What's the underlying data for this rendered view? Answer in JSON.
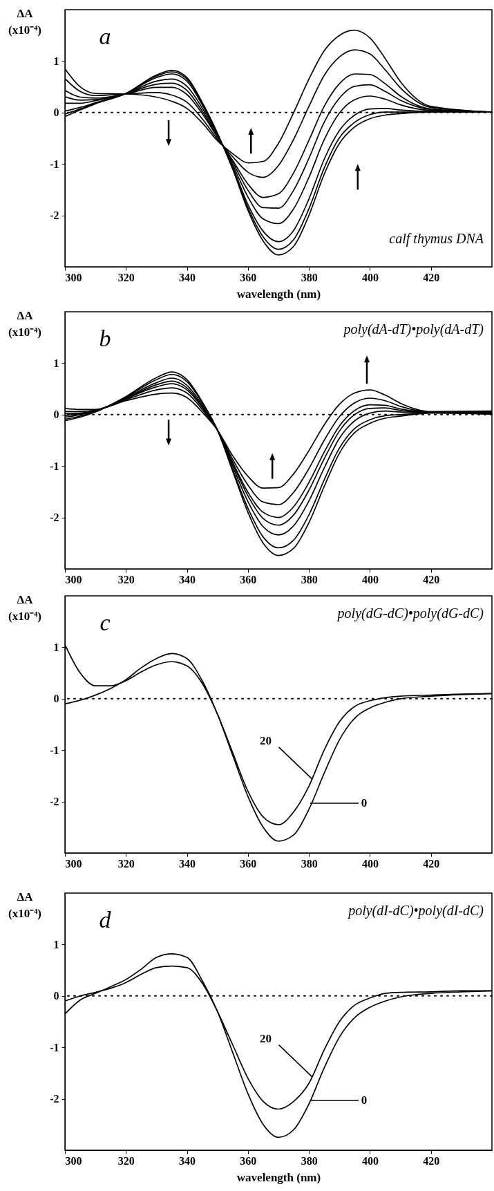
{
  "chart_data": [
    {
      "type": "line",
      "title": "a",
      "subtitle": "calf thymus DNA",
      "xlabel": "wavelength (nm)",
      "ylabel": "ΔA (x10⁻⁴)",
      "x": [
        300,
        305,
        310,
        320,
        330,
        335,
        340,
        345,
        350,
        355,
        360,
        365,
        370,
        375,
        380,
        385,
        390,
        395,
        400,
        405,
        410,
        420,
        440
      ],
      "xlim": [
        300,
        440
      ],
      "xticks": [
        300,
        320,
        340,
        360,
        380,
        400,
        420
      ],
      "ylim": [
        -3,
        2
      ],
      "yticks": [
        -2,
        -1,
        0,
        1
      ],
      "ref_lines": [
        {
          "axis": "y",
          "value": 0,
          "line_style": "dotted"
        }
      ],
      "series": [
        {
          "color": "#000000",
          "values": [
            -0.08,
            0.05,
            0.17,
            0.37,
            0.73,
            0.82,
            0.68,
            0.2,
            -0.4,
            -1.1,
            -1.9,
            -2.5,
            -2.77,
            -2.6,
            -2.0,
            -1.2,
            -0.6,
            -0.28,
            -0.12,
            -0.05,
            -0.02,
            0.01,
            0.01
          ]
        },
        {
          "color": "#000000",
          "values": [
            -0.03,
            0.07,
            0.18,
            0.37,
            0.71,
            0.79,
            0.65,
            0.18,
            -0.41,
            -1.08,
            -1.85,
            -2.42,
            -2.66,
            -2.47,
            -1.87,
            -1.08,
            -0.49,
            -0.19,
            -0.04,
            0.01,
            0.01,
            0.01,
            0.01
          ]
        },
        {
          "color": "#000000",
          "values": [
            0.03,
            0.1,
            0.19,
            0.37,
            0.68,
            0.75,
            0.61,
            0.15,
            -0.42,
            -1.06,
            -1.79,
            -2.31,
            -2.51,
            -2.29,
            -1.68,
            -0.91,
            -0.35,
            -0.05,
            0.07,
            0.08,
            0.05,
            0.02,
            0.01
          ]
        },
        {
          "color": "#000000",
          "values": [
            0.18,
            0.18,
            0.23,
            0.37,
            0.61,
            0.65,
            0.51,
            0.09,
            -0.44,
            -1.02,
            -1.64,
            -2.07,
            -2.16,
            -1.87,
            -1.26,
            -0.53,
            -0.01,
            0.25,
            0.32,
            0.26,
            0.15,
            0.04,
            0.01
          ]
        },
        {
          "color": "#000000",
          "values": [
            0.31,
            0.24,
            0.25,
            0.37,
            0.55,
            0.57,
            0.43,
            0.03,
            -0.46,
            -0.97,
            -1.51,
            -1.85,
            -1.86,
            -1.51,
            -0.89,
            -0.19,
            0.28,
            0.51,
            0.54,
            0.41,
            0.24,
            0.06,
            0.01
          ]
        },
        {
          "color": "#000000",
          "values": [
            0.43,
            0.3,
            0.28,
            0.36,
            0.49,
            0.49,
            0.35,
            -0.02,
            -0.48,
            -0.93,
            -1.39,
            -1.65,
            -1.58,
            -1.17,
            -0.54,
            0.12,
            0.56,
            0.75,
            0.74,
            0.56,
            0.32,
            0.07,
            0.01
          ]
        },
        {
          "color": "#000000",
          "values": [
            0.66,
            0.41,
            0.33,
            0.36,
            0.39,
            0.34,
            0.2,
            -0.12,
            -0.52,
            -0.86,
            -1.16,
            -1.26,
            -1.03,
            -0.52,
            0.12,
            0.72,
            1.08,
            1.22,
            1.14,
            0.83,
            0.48,
            0.1,
            0.01
          ]
        },
        {
          "color": "#000000",
          "values": [
            0.85,
            0.5,
            0.37,
            0.36,
            0.3,
            0.22,
            0.08,
            -0.2,
            -0.55,
            -0.8,
            -0.98,
            -0.95,
            -0.6,
            0.0,
            0.65,
            1.2,
            1.5,
            1.6,
            1.45,
            1.05,
            0.6,
            0.12,
            0.01
          ]
        }
      ]
    },
    {
      "type": "line",
      "title": "b",
      "subtitle": "poly(dA-dT)•poly(dA-dT)",
      "ylabel": "ΔA (x10⁻⁴)",
      "x": [
        300,
        305,
        310,
        320,
        330,
        335,
        340,
        345,
        350,
        355,
        360,
        365,
        370,
        375,
        380,
        385,
        390,
        395,
        400,
        405,
        410,
        420,
        440
      ],
      "xlim": [
        300,
        440
      ],
      "xticks": [
        300,
        320,
        340,
        360,
        380,
        400,
        420
      ],
      "ylim": [
        -3,
        2
      ],
      "yticks": [
        -2,
        -1,
        0,
        1
      ],
      "ref_lines": [
        {
          "axis": "y",
          "value": 0,
          "line_style": "dotted"
        }
      ],
      "series": [
        {
          "color": "#000000",
          "values": [
            -0.12,
            -0.05,
            0.05,
            0.35,
            0.72,
            0.83,
            0.68,
            0.25,
            -0.3,
            -1.1,
            -1.9,
            -2.5,
            -2.74,
            -2.6,
            -2.1,
            -1.4,
            -0.75,
            -0.35,
            -0.17,
            -0.07,
            -0.03,
            0.03,
            0.01
          ]
        },
        {
          "color": "#000000",
          "values": [
            -0.09,
            -0.03,
            0.06,
            0.34,
            0.68,
            0.78,
            0.64,
            0.23,
            -0.3,
            -1.07,
            -1.82,
            -2.38,
            -2.59,
            -2.44,
            -1.95,
            -1.27,
            -0.65,
            -0.27,
            -0.1,
            -0.02,
            0,
            0.04,
            0.02
          ]
        },
        {
          "color": "#000000",
          "values": [
            -0.05,
            0,
            0.07,
            0.33,
            0.62,
            0.71,
            0.57,
            0.19,
            -0.3,
            -1.01,
            -1.69,
            -2.18,
            -2.34,
            -2.16,
            -1.68,
            -1.04,
            -0.46,
            -0.12,
            0.03,
            0.07,
            0.05,
            0.04,
            0.03
          ]
        },
        {
          "color": "#000000",
          "values": [
            -0.02,
            0.02,
            0.07,
            0.31,
            0.58,
            0.65,
            0.52,
            0.16,
            -0.3,
            -0.96,
            -1.58,
            -2.02,
            -2.15,
            -1.95,
            -1.47,
            -0.86,
            -0.32,
            0,
            0.12,
            0.13,
            0.08,
            0.04,
            0.04
          ]
        },
        {
          "color": "#000000",
          "values": [
            0.02,
            0.03,
            0.08,
            0.31,
            0.54,
            0.6,
            0.48,
            0.14,
            -0.3,
            -0.93,
            -1.51,
            -1.9,
            -2.0,
            -1.79,
            -1.32,
            -0.73,
            -0.22,
            0.08,
            0.19,
            0.18,
            0.11,
            0.05,
            0.05
          ]
        },
        {
          "color": "#000000",
          "values": [
            0.06,
            0.06,
            0.09,
            0.29,
            0.48,
            0.52,
            0.42,
            0.1,
            -0.3,
            -0.87,
            -1.37,
            -1.7,
            -1.75,
            -1.51,
            -1.05,
            -0.5,
            -0.04,
            0.23,
            0.32,
            0.27,
            0.16,
            0.05,
            0.06
          ]
        },
        {
          "color": "#000000",
          "values": [
            0.12,
            0.1,
            0.1,
            0.27,
            0.4,
            0.42,
            0.33,
            0.05,
            -0.3,
            -0.8,
            -1.2,
            -1.43,
            -1.42,
            -1.15,
            -0.7,
            -0.2,
            0.2,
            0.42,
            0.48,
            0.38,
            0.22,
            0.06,
            0.07
          ]
        }
      ]
    },
    {
      "type": "line",
      "title": "c",
      "subtitle": "poly(dG-dC)•poly(dG-dC)",
      "ylabel": "ΔA (x10⁻⁴)",
      "x": [
        300,
        305,
        310,
        315,
        320,
        325,
        330,
        335,
        340,
        345,
        350,
        355,
        360,
        365,
        370,
        375,
        380,
        385,
        390,
        395,
        400,
        405,
        410,
        420,
        430,
        440
      ],
      "xlim": [
        300,
        440
      ],
      "xticks": [
        300,
        320,
        340,
        360,
        380,
        400,
        420
      ],
      "ylim": [
        -3,
        2
      ],
      "yticks": [
        -2,
        -1,
        0,
        1
      ],
      "ref_lines": [
        {
          "axis": "y",
          "value": 0,
          "line_style": "dotted"
        }
      ],
      "annotations": [
        {
          "text": "20",
          "x": 381,
          "y": -1.56
        },
        "0"
      ],
      "series": [
        {
          "color": "#000000",
          "values": [
            1.05,
            0.5,
            0.25,
            0.25,
            0.35,
            0.52,
            0.66,
            0.72,
            0.64,
            0.3,
            -0.3,
            -1.05,
            -1.8,
            -2.3,
            -2.45,
            -2.2,
            -1.7,
            -1.0,
            -0.45,
            -0.15,
            -0.04,
            0.02,
            0.05,
            0.07,
            0.09,
            0.1
          ]
        },
        {
          "color": "#000000",
          "values": [
            -0.1,
            -0.03,
            0.07,
            0.2,
            0.37,
            0.6,
            0.78,
            0.88,
            0.78,
            0.35,
            -0.3,
            -1.1,
            -1.9,
            -2.5,
            -2.77,
            -2.65,
            -2.15,
            -1.45,
            -0.8,
            -0.38,
            -0.18,
            -0.07,
            0,
            0.05,
            0.08,
            0.1
          ]
        }
      ]
    },
    {
      "type": "line",
      "title": "d",
      "subtitle": "poly(dI-dC)•poly(dI-dC)",
      "xlabel": "wavelength (nm)",
      "ylabel": "ΔA (x10⁻⁴)",
      "x": [
        300,
        305,
        310,
        315,
        320,
        325,
        330,
        335,
        340,
        345,
        350,
        355,
        360,
        365,
        370,
        375,
        380,
        385,
        390,
        395,
        400,
        405,
        410,
        420,
        430,
        440
      ],
      "xlim": [
        300,
        440
      ],
      "xticks": [
        300,
        320,
        340,
        360,
        380,
        400,
        420
      ],
      "ylim": [
        -3,
        2
      ],
      "yticks": [
        -2,
        -1,
        0,
        1
      ],
      "ref_lines": [
        {
          "axis": "y",
          "value": 0,
          "line_style": "dotted"
        }
      ],
      "annotations": [
        {
          "text": "20",
          "x": 381,
          "y": -1.57
        },
        "0"
      ],
      "series": [
        {
          "color": "#000000",
          "values": [
            -0.1,
            0,
            0.07,
            0.15,
            0.26,
            0.42,
            0.55,
            0.58,
            0.55,
            0.25,
            -0.3,
            -0.95,
            -1.6,
            -2.05,
            -2.2,
            -2.05,
            -1.7,
            -1.05,
            -0.5,
            -0.18,
            -0.04,
            0.05,
            0.07,
            0.08,
            0.1,
            0.1
          ]
        },
        {
          "color": "#000000",
          "values": [
            -0.35,
            -0.08,
            0.05,
            0.18,
            0.32,
            0.52,
            0.75,
            0.82,
            0.75,
            0.3,
            -0.3,
            -1.1,
            -1.9,
            -2.5,
            -2.75,
            -2.6,
            -2.1,
            -1.4,
            -0.8,
            -0.42,
            -0.22,
            -0.1,
            -0.02,
            0.05,
            0.08,
            0.1
          ]
        }
      ]
    }
  ]
}
